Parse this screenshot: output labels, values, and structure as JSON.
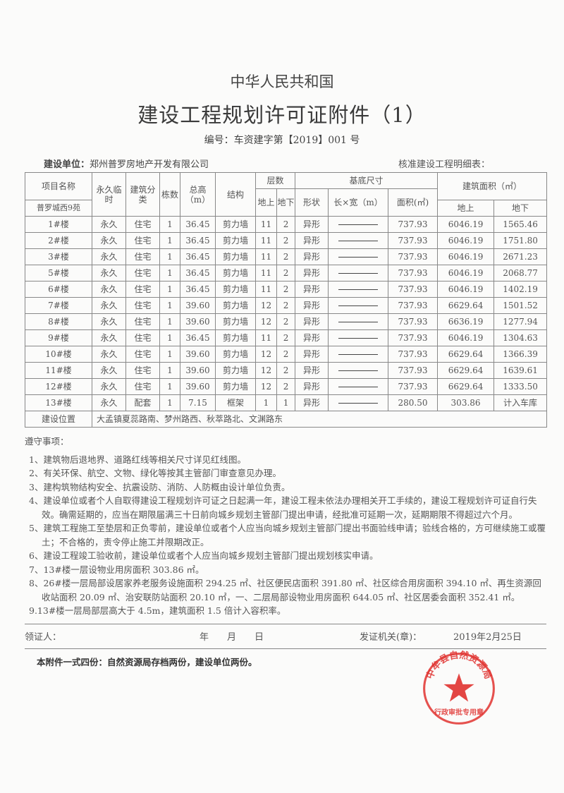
{
  "header": {
    "country": "中华人民共和国",
    "title": "建设工程规划许可证附件（1）",
    "number": "编号：车资建字第【2019】001 号",
    "unit_label": "建设单位：",
    "unit_value": "郑州普罗房地产开发有限公司",
    "table_caption": "核准建设工程明细表："
  },
  "table": {
    "h": {
      "name": "项目名称",
      "project": "普罗城西9苑",
      "perm": "永久临时",
      "type": "建筑分类",
      "count": "栋数",
      "height": "总高（m）",
      "struct": "结构",
      "floors": "层数",
      "above": "地上",
      "below": "地下",
      "base": "基底尺寸",
      "shape": "形状",
      "lw": "长×宽（m）",
      "barea": "面积(㎡)",
      "garea": "建筑面积（㎡）",
      "garea_above": "地上",
      "garea_below": "地下"
    },
    "rows": [
      [
        "1#楼",
        "永久",
        "住宅",
        "1",
        "36.45",
        "剪力墙",
        "11",
        "2",
        "异形",
        "737.93",
        "6046.19",
        "1565.46"
      ],
      [
        "2#楼",
        "永久",
        "住宅",
        "1",
        "36.45",
        "剪力墙",
        "11",
        "2",
        "异形",
        "737.93",
        "6046.19",
        "1751.80"
      ],
      [
        "3#楼",
        "永久",
        "住宅",
        "1",
        "36.45",
        "剪力墙",
        "11",
        "2",
        "异形",
        "737.93",
        "6046.19",
        "2671.23"
      ],
      [
        "5#楼",
        "永久",
        "住宅",
        "1",
        "36.45",
        "剪力墙",
        "11",
        "2",
        "异形",
        "737.93",
        "6046.19",
        "2068.77"
      ],
      [
        "6#楼",
        "永久",
        "住宅",
        "1",
        "36.45",
        "剪力墙",
        "11",
        "2",
        "异形",
        "737.93",
        "6046.19",
        "1402.19"
      ],
      [
        "7#楼",
        "永久",
        "住宅",
        "1",
        "39.60",
        "剪力墙",
        "12",
        "2",
        "异形",
        "737.93",
        "6629.64",
        "1501.52"
      ],
      [
        "8#楼",
        "永久",
        "住宅",
        "1",
        "39.60",
        "剪力墙",
        "12",
        "2",
        "异形",
        "737.93",
        "6636.19",
        "1277.94"
      ],
      [
        "9#楼",
        "永久",
        "住宅",
        "1",
        "36.45",
        "剪力墙",
        "11",
        "2",
        "异形",
        "737.93",
        "6046.19",
        "1304.63"
      ],
      [
        "10#楼",
        "永久",
        "住宅",
        "1",
        "39.60",
        "剪力墙",
        "12",
        "2",
        "异形",
        "737.93",
        "6629.64",
        "1366.39"
      ],
      [
        "11#楼",
        "永久",
        "住宅",
        "1",
        "39.60",
        "剪力墙",
        "12",
        "2",
        "异形",
        "737.93",
        "6629.64",
        "1639.61"
      ],
      [
        "12#楼",
        "永久",
        "住宅",
        "1",
        "39.60",
        "剪力墙",
        "12",
        "2",
        "异形",
        "737.93",
        "6629.64",
        "1333.50"
      ],
      [
        "13#楼",
        "永久",
        "配套",
        "1",
        "7.15",
        "框架",
        "1",
        "1",
        "异形",
        "280.50",
        "303.86",
        "计入车库"
      ]
    ],
    "location_label": "建设位置",
    "location_value": "大孟镇夏蕊路南、梦州路西、秋萃路北、文渊路东"
  },
  "notes": {
    "title": "遵守事项：",
    "items": [
      "1、建筑物后退地界、道路红线等相关尺寸详见红线图。",
      "2、有关环保、航空、文物、绿化等按其主管部门审查意见办理。",
      "3、建构筑物结构安全、抗震设防、消防、人防概由设计单位负责。",
      "4、建设单位或者个人自取得建设工程规划许可证之日起满一年，建设工程未依法办理相关开工手续的，建设工程规划许可证自行失效。确需延期的，应当在期限届满三十日前向城乡规划主管部门提出申请，经批准可延期一次，延期期限不得超过六个月。",
      "5、建筑工程施工至垫层和正负零前，建设单位或者个人应当向城乡规划主管部门提出书面验线申请；验线合格的，方可继续施工或覆土；不合格的，责令停止施工并限期改正。",
      "6、建设工程竣工验收前，建设单位或者个人应当向城乡规划主管部门提出规划核实申请。",
      "7、13#楼一层设物业用房面积 303.86 ㎡。",
      "8、26#楼一层局部设居家养老服务设施面积 294.25 ㎡、社区便民店面积 391.80 ㎡、社区综合用房面积 394.10 ㎡、再生资源回收站面积 20.09 ㎡、治安联防站面积 20.10 ㎡，一、二层局部设物业用房面积 644.05 ㎡、社区居委会面积 352.41 ㎡。",
      "9.13#楼一层局部层高大于 4.5m，建筑面积 1.5 倍计入容积率。"
    ]
  },
  "signature": {
    "recipient": "领证人：",
    "date_blank": "年　　月　　日",
    "issuer": "发证机关(章)：",
    "issue_date": "2019年2月25日"
  },
  "footer": "本附件一式四份：自然资源局存档两份，建设单位两份。",
  "seal": {
    "text": "中牟县自然资源局",
    "subtext": "行政审批专用章",
    "color": "#e0322f"
  }
}
